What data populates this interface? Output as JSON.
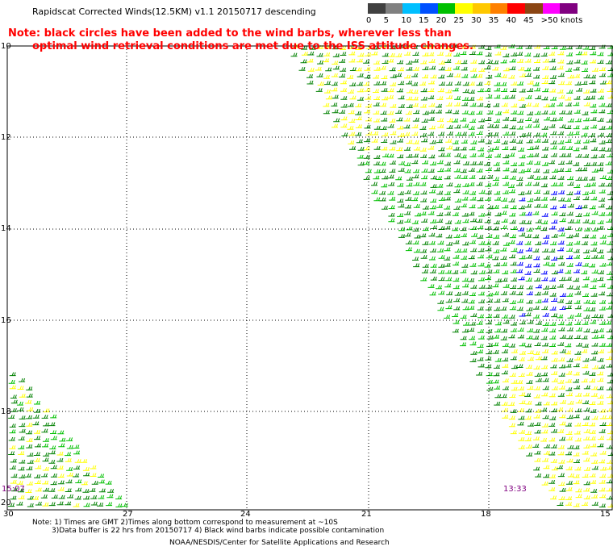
{
  "title": "Rapidscat Corrected Winds(12.5KM) v1.1 20150717 descending",
  "note_line1": "Note: black circles have been added to the wind barbs, wherever less than",
  "note_line2": "optimal wind retrieval conditions are met due to the ISS attitude changes.",
  "legend": {
    "labels": [
      "0",
      "5",
      "10",
      "15",
      "20",
      "25",
      "30",
      "35",
      "40",
      "45",
      ">50 knots"
    ],
    "colors": [
      "#404040",
      "#808080",
      "#00bfff",
      "#0050ff",
      "#00c000",
      "#ffff00",
      "#ffc800",
      "#ff8000",
      "#ff0000",
      "#8b4513",
      "#ff00ff",
      "#800080"
    ]
  },
  "axes": {
    "lat_labels": [
      "10",
      "12",
      "14",
      "16",
      "18",
      "20"
    ],
    "lon_labels": [
      "30",
      "27",
      "24",
      "21",
      "18",
      "15"
    ]
  },
  "time_labels": {
    "left": "15:07",
    "right": "13:33"
  },
  "footer": {
    "line1": "Note: 1) Times are GMT 2)Times along bottom correspond to measurement at ~10S",
    "line2": "3)Data buffer is 22 hrs from 20150717 4) Black wind barbs indicate possible contamination",
    "line3": "NOAA/NESDIS/Center for Satellite Applications and Research"
  }
}
